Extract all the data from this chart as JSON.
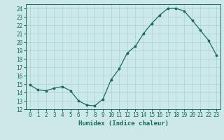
{
  "x": [
    0,
    1,
    2,
    3,
    4,
    5,
    6,
    7,
    8,
    9,
    10,
    11,
    12,
    13,
    14,
    15,
    16,
    17,
    18,
    19,
    20,
    21,
    22,
    23
  ],
  "y": [
    14.9,
    14.3,
    14.2,
    14.5,
    14.7,
    14.2,
    13.0,
    12.5,
    12.4,
    13.2,
    15.5,
    16.8,
    18.7,
    19.5,
    21.0,
    22.2,
    23.2,
    24.0,
    24.0,
    23.7,
    22.6,
    21.4,
    20.2,
    18.4
  ],
  "xlabel": "Humidex (Indice chaleur)",
  "ylim": [
    12,
    24.5
  ],
  "xlim": [
    -0.5,
    23.5
  ],
  "yticks": [
    12,
    13,
    14,
    15,
    16,
    17,
    18,
    19,
    20,
    21,
    22,
    23,
    24
  ],
  "xticks": [
    0,
    1,
    2,
    3,
    4,
    5,
    6,
    7,
    8,
    9,
    10,
    11,
    12,
    13,
    14,
    15,
    16,
    17,
    18,
    19,
    20,
    21,
    22,
    23
  ],
  "line_color": "#1a6b5a",
  "marker_color": "#1a6b5a",
  "bg_color": "#cce8e8",
  "grid_color": "#a8d4d4",
  "label_fontsize": 6.5,
  "tick_fontsize": 5.5
}
